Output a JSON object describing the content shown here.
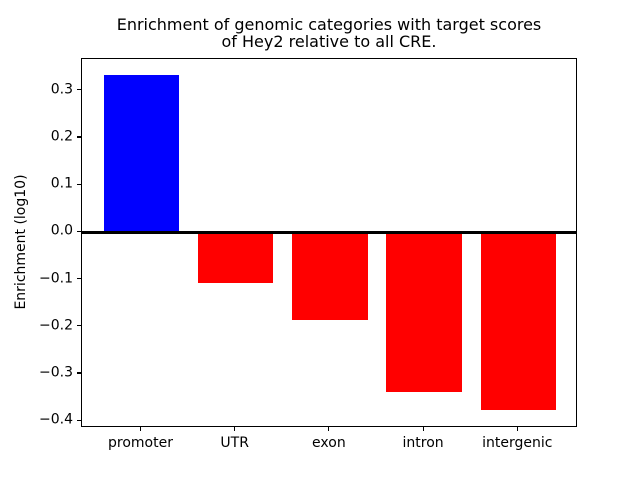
{
  "chart_data": {
    "type": "bar",
    "title": "Enrichment of genomic categories with target scores\nof Hey2 relative to all CRE.",
    "title_lines": [
      "Enrichment of genomic categories with target scores",
      "of Hey2 relative to all CRE."
    ],
    "xlabel": "",
    "ylabel": "Enrichment (log10)",
    "categories": [
      "promoter",
      "UTR",
      "exon",
      "intron",
      "intergenic"
    ],
    "values": [
      0.333,
      -0.107,
      -0.185,
      -0.338,
      -0.377
    ],
    "bar_colors": [
      "#0000ff",
      "#ff0000",
      "#ff0000",
      "#ff0000",
      "#ff0000"
    ],
    "positive_color": "#0000ff",
    "negative_color": "#ff0000",
    "ylim": [
      -0.4146,
      0.3686
    ],
    "yticks": [
      0.3,
      0.2,
      0.1,
      0.0,
      -0.1,
      -0.2,
      -0.3,
      -0.4
    ],
    "ytick_labels": [
      "0.3",
      "0.2",
      "0.1",
      "0.0",
      "−0.1",
      "−0.2",
      "−0.3",
      "−0.4"
    ],
    "grid": false,
    "legend": null,
    "zero_line": {
      "y": 0,
      "color": "#000000",
      "linewidth": 3
    },
    "axis_color": "#000000",
    "background_color": "#ffffff",
    "bar_width_fraction": 0.8
  }
}
